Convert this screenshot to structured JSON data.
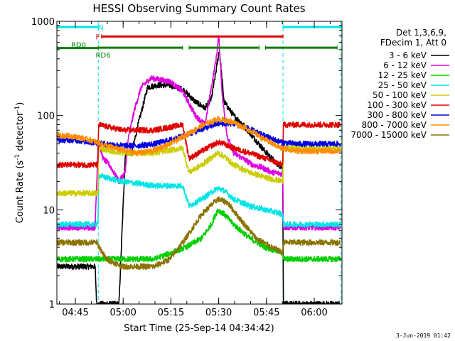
{
  "chart_data": {
    "type": "line",
    "title": "HESSI Observing Summary Count Rates",
    "xlabel": "Start Time (25-Sep-14 04:34:42)",
    "ylabel_parts": [
      "Count Rate (s",
      "-1",
      " detector",
      "-1",
      ")"
    ],
    "yscale": "log",
    "ylim": [
      1,
      1000
    ],
    "xlim_minutes": [
      4.5,
      94
    ],
    "x_ticks": [
      {
        "label": "04:45",
        "minute": 10.3
      },
      {
        "label": "05:00",
        "minute": 25.3
      },
      {
        "label": "05:15",
        "minute": 40.3
      },
      {
        "label": "05:30",
        "minute": 55.3
      },
      {
        "label": "05:45",
        "minute": 70.3
      },
      {
        "label": "06:00",
        "minute": 85.3
      }
    ],
    "y_ticks": [
      {
        "label": "1",
        "value": 1
      },
      {
        "label": "10",
        "value": 10
      },
      {
        "label": "100",
        "value": 100
      },
      {
        "label": "1000",
        "value": 1000
      }
    ],
    "legend_header": [
      "Det 1,3,6,9,",
      "FDecim 1, Att 0"
    ],
    "legend_position": "right",
    "flag_bars": [
      {
        "label": "N",
        "color": "#00e5e5",
        "y_value": 870,
        "segments": [
          [
            4.6,
            17.5
          ],
          [
            75.5,
            93.7
          ]
        ],
        "label_minute": 18.3
      },
      {
        "label": "F",
        "color": "#e00000",
        "y_value": 690,
        "segments": [
          [
            18.5,
            75.5
          ]
        ],
        "label_minute": 17.3
      },
      {
        "label": "RD0",
        "color": "#008000",
        "y_value": 520,
        "segments": [
          [
            4.6,
            17.5
          ]
        ],
        "label_minute": 11.3
      },
      {
        "label": "RD6",
        "color": "#008000",
        "y_value": 525,
        "segments": [
          [
            17.5,
            44.0
          ],
          [
            46.0,
            68.0
          ],
          [
            70.0,
            92.5
          ]
        ],
        "label_minute": 19.0
      }
    ],
    "dashed_markers": {
      "color": "#00e5e5",
      "minutes": [
        17.5,
        75.5,
        93.7
      ]
    },
    "series": [
      {
        "name": "3 - 6 keV",
        "color": "#000000",
        "x": [
          4.6,
          10,
          16.5,
          17,
          20,
          24,
          26,
          28,
          30,
          33,
          36,
          40,
          44,
          48,
          51,
          53,
          54.5,
          55.5,
          57,
          60,
          63,
          66,
          69,
          72,
          74,
          75.4,
          75.6,
          80,
          85,
          90,
          93.5
        ],
        "y": [
          2.5,
          2.5,
          2.5,
          1.0,
          1.0,
          1.0,
          40,
          40,
          80,
          200,
          210,
          210,
          190,
          140,
          120,
          150,
          300,
          500,
          140,
          100,
          80,
          60,
          45,
          35,
          30,
          28,
          1.0,
          1.0,
          1.0,
          1.0,
          1.0
        ]
      },
      {
        "name": "6 - 12 keV",
        "color": "#e000e0",
        "x": [
          4.6,
          10,
          16.5,
          17.5,
          19,
          21,
          24,
          26,
          27,
          29,
          31,
          34,
          37,
          40,
          44,
          48,
          51,
          53,
          54.5,
          55.3,
          56.5,
          58,
          60,
          63,
          66,
          69,
          72,
          75.4,
          75.6,
          80,
          85,
          90,
          93.5
        ],
        "y": [
          6.5,
          6.5,
          6.5,
          55,
          35,
          30,
          20,
          25,
          60,
          120,
          200,
          250,
          240,
          230,
          180,
          100,
          80,
          200,
          400,
          700,
          150,
          60,
          40,
          35,
          30,
          28,
          25,
          24,
          6.5,
          6.5,
          6.5,
          6.5,
          6.5
        ]
      },
      {
        "name": "12 - 25 keV",
        "color": "#00d000",
        "x": [
          4.6,
          10,
          17,
          25,
          35,
          45,
          50,
          53,
          55,
          57,
          60,
          65,
          70,
          75.4,
          75.6,
          85,
          93.5
        ],
        "y": [
          3.0,
          3.0,
          3.0,
          3.0,
          3.0,
          4.0,
          5.0,
          7.0,
          10.0,
          9.0,
          7.0,
          5.0,
          4.0,
          3.5,
          3.0,
          3.0,
          3.0
        ]
      },
      {
        "name": "25 - 50 keV",
        "color": "#00e5e5",
        "x": [
          4.6,
          17.4,
          17.6,
          25,
          35,
          44,
          46,
          50,
          55,
          57,
          60,
          65,
          70,
          75.4,
          75.6,
          85,
          93.5
        ],
        "y": [
          7.0,
          7.0,
          23,
          20,
          18,
          18,
          11,
          13,
          17,
          16,
          13,
          11,
          10,
          9.0,
          7.0,
          7.0,
          7.0
        ]
      },
      {
        "name": "50 - 100 keV",
        "color": "#cccc00",
        "x": [
          4.6,
          17.4,
          17.6,
          25,
          35,
          44,
          46,
          50,
          55,
          57,
          60,
          65,
          70,
          75.4,
          75.6,
          85,
          93.5
        ],
        "y": [
          15,
          15,
          45,
          40,
          40,
          45,
          25,
          30,
          40,
          37,
          30,
          25,
          22,
          20,
          45,
          45,
          45
        ]
      },
      {
        "name": "100 - 300 keV",
        "color": "#e00000",
        "x": [
          4.6,
          17.4,
          17.6,
          25,
          35,
          44,
          46,
          50,
          55,
          57,
          60,
          65,
          70,
          75.4,
          75.6,
          85,
          93.5
        ],
        "y": [
          30,
          30,
          80,
          70,
          70,
          80,
          35,
          42,
          52,
          50,
          45,
          40,
          35,
          30,
          80,
          80,
          80
        ]
      },
      {
        "name": "300 - 800 keV",
        "color": "#0000e0",
        "x": [
          4.6,
          10,
          15,
          20,
          25,
          30,
          35,
          40,
          45,
          50,
          55,
          60,
          65,
          70,
          75,
          80,
          85,
          90,
          93.5
        ],
        "y": [
          55,
          55,
          52,
          50,
          48,
          48,
          50,
          55,
          62,
          72,
          82,
          82,
          72,
          60,
          52,
          50,
          50,
          50,
          50
        ]
      },
      {
        "name": "800 - 7000 keV",
        "color": "#ff8c00",
        "x": [
          4.6,
          10,
          15,
          20,
          25,
          30,
          35,
          40,
          45,
          50,
          55,
          60,
          65,
          70,
          75,
          80,
          85,
          90,
          93.5
        ],
        "y": [
          62,
          60,
          55,
          48,
          43,
          40,
          43,
          50,
          62,
          78,
          92,
          85,
          70,
          55,
          45,
          42,
          42,
          42,
          42
        ]
      },
      {
        "name": "7000 - 15000 keV",
        "color": "#8b7300",
        "x": [
          4.6,
          17,
          20,
          25,
          30,
          35,
          40,
          45,
          50,
          55,
          58,
          62,
          67,
          72,
          75.4,
          75.6,
          85,
          93.5
        ],
        "y": [
          4.5,
          4.5,
          3.0,
          2.5,
          2.5,
          2.5,
          3.0,
          5.0,
          9.0,
          13,
          12,
          8.0,
          5.0,
          4.0,
          3.5,
          4.5,
          4.5,
          4.5
        ]
      }
    ]
  },
  "footer": {
    "date": "3-Jun-2019 01:42"
  }
}
